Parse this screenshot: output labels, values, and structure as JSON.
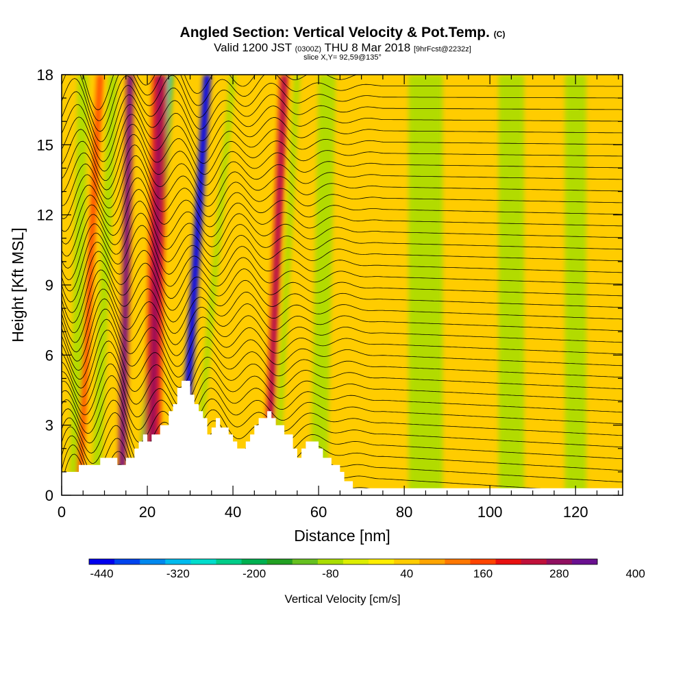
{
  "title": {
    "main": "Angled Section: Vertical Velocity & Pot.Temp.",
    "main_unit": "(C)",
    "valid_prefix": "Valid 1200 JST",
    "valid_utc": "(0300Z)",
    "valid_date": "THU 8 Mar 2018",
    "valid_fcst": "[9hrFcst@2232z]",
    "slice": "slice X,Y= 92,59@135°"
  },
  "chart_data": {
    "type": "heatmap",
    "xlabel": "Distance [nm]",
    "ylabel": "Height [Kft MSL]",
    "xlim": [
      0,
      131
    ],
    "ylim": [
      0,
      18
    ],
    "x_ticks": [
      0,
      20,
      40,
      60,
      80,
      100,
      120
    ],
    "y_ticks": [
      0,
      3,
      6,
      9,
      12,
      15,
      18
    ],
    "colorbar": {
      "label": "Vertical Velocity [cm/s]",
      "tick_labels": [
        "-440",
        "-320",
        "-200",
        "-80",
        "40",
        "160",
        "280",
        "400"
      ],
      "colors": [
        "#0000ee",
        "#0044ee",
        "#0088ee",
        "#00bbee",
        "#00ddcc",
        "#00cc88",
        "#00b050",
        "#22a022",
        "#66c020",
        "#aadd00",
        "#ddee00",
        "#ffee00",
        "#ffcc00",
        "#ffa500",
        "#ff7700",
        "#ff4400",
        "#e81010",
        "#c0103a",
        "#901060",
        "#6a1090"
      ]
    },
    "background_velocity": 40,
    "velocity_bands": [
      {
        "x_base": 3,
        "x_top": 5,
        "width": 2.5,
        "velocity": -80
      },
      {
        "x_base": 4,
        "x_top": 9,
        "width": 1.5,
        "velocity": 160
      },
      {
        "x_base": 8,
        "x_top": 12,
        "width": 2.2,
        "velocity": -80
      },
      {
        "x_base": 14,
        "x_top": 16,
        "width": 1.8,
        "velocity": 280
      },
      {
        "x_base": 19,
        "x_top": 25,
        "width": 2.0,
        "velocity": -200
      },
      {
        "x_base": 21,
        "x_top": 23,
        "width": 3.5,
        "velocity": 200
      },
      {
        "x_base": 28,
        "x_top": 34,
        "width": 1.8,
        "velocity": -440
      },
      {
        "x_base": 31,
        "x_top": 40,
        "width": 1.5,
        "velocity": -80
      },
      {
        "x_base": 48,
        "x_top": 52,
        "width": 2.0,
        "velocity": 200
      },
      {
        "x_base": 50,
        "x_top": 55,
        "width": 1.5,
        "velocity": -80
      },
      {
        "x_base": 60,
        "x_top": 62,
        "width": 4.0,
        "velocity": -80
      },
      {
        "x_base": 85,
        "x_top": 85,
        "width": 8.0,
        "velocity": -80
      },
      {
        "x_base": 105,
        "x_top": 105,
        "width": 6.0,
        "velocity": -80
      },
      {
        "x_base": 120,
        "x_top": 120,
        "width": 5.0,
        "velocity": -80
      }
    ],
    "terrain": {
      "x": [
        0,
        4,
        4,
        9,
        9,
        13,
        13,
        15,
        15,
        17,
        17,
        18,
        18,
        19,
        19,
        20,
        20,
        21,
        21,
        23,
        23,
        25,
        25,
        26,
        26,
        27,
        27,
        28,
        28,
        30,
        30,
        31,
        31,
        32,
        32,
        33,
        33,
        34,
        34,
        35,
        35,
        36,
        36,
        37,
        37,
        39,
        39,
        40,
        40,
        41,
        41,
        43,
        43,
        44,
        44,
        45,
        45,
        46,
        46,
        48,
        48,
        49,
        49,
        50,
        50,
        52,
        52,
        54,
        54,
        55,
        55,
        56,
        56,
        57,
        57,
        60,
        60,
        61,
        61,
        63,
        63,
        65,
        65,
        66,
        66,
        68,
        68,
        71,
        71,
        131
      ],
      "y": [
        1.0,
        1.0,
        1.3,
        1.3,
        1.6,
        1.6,
        1.3,
        1.3,
        1.6,
        1.6,
        2.0,
        2.0,
        2.3,
        2.3,
        2.6,
        2.6,
        2.3,
        2.3,
        2.6,
        2.6,
        3.0,
        3.0,
        3.6,
        3.6,
        3.9,
        3.9,
        4.6,
        4.6,
        4.9,
        4.9,
        4.3,
        4.3,
        3.9,
        3.9,
        3.6,
        3.6,
        3.3,
        3.3,
        2.6,
        2.6,
        2.9,
        2.9,
        3.3,
        3.3,
        2.9,
        2.9,
        2.6,
        2.6,
        2.3,
        2.3,
        2.0,
        2.0,
        2.3,
        2.3,
        2.6,
        2.6,
        3.0,
        3.0,
        3.3,
        3.3,
        3.6,
        3.6,
        3.3,
        3.3,
        3.0,
        3.0,
        2.6,
        2.6,
        2.0,
        2.0,
        1.6,
        1.6,
        2.0,
        2.0,
        2.3,
        2.3,
        2.0,
        2.0,
        1.6,
        1.6,
        1.3,
        1.3,
        1.0,
        1.0,
        0.6,
        0.6,
        0.3,
        0.3,
        0.3,
        0.3
      ]
    },
    "contour_count": 38
  }
}
